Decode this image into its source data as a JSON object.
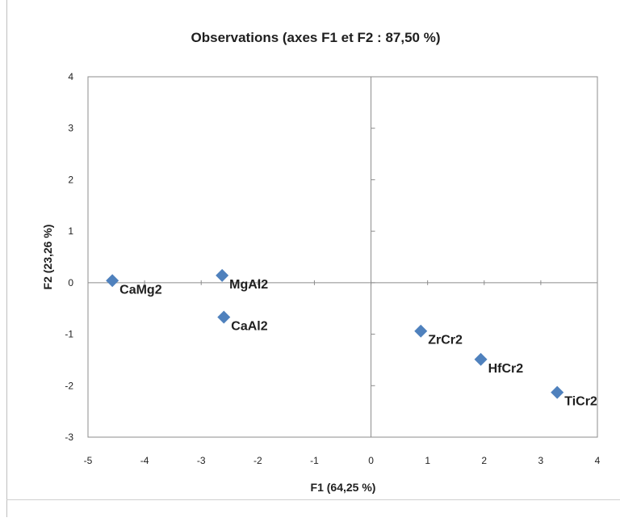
{
  "chart_data": {
    "type": "scatter",
    "title": "Observations (axes F1 et F2 : 87,50 %)",
    "xlabel": "F1 (64,25 %)",
    "ylabel": "F2 (23,26 %)",
    "xlim": [
      -5,
      4
    ],
    "ylim": [
      -3,
      4
    ],
    "xticks": [
      -5,
      -4,
      -3,
      -2,
      -1,
      0,
      1,
      2,
      3,
      4
    ],
    "yticks": [
      -3,
      -2,
      -1,
      0,
      1,
      2,
      3,
      4
    ],
    "grid": false,
    "marker": "diamond",
    "marker_color": "#4f81bd",
    "points": [
      {
        "label": "CaMg2",
        "x": -4.57,
        "y": 0.04
      },
      {
        "label": "MgAl2",
        "x": -2.63,
        "y": 0.14
      },
      {
        "label": "CaAl2",
        "x": -2.6,
        "y": -0.67
      },
      {
        "label": "ZrCr2",
        "x": 0.88,
        "y": -0.94
      },
      {
        "label": "HfCr2",
        "x": 1.94,
        "y": -1.49
      },
      {
        "label": "TiCr2",
        "x": 3.29,
        "y": -2.13
      }
    ]
  }
}
